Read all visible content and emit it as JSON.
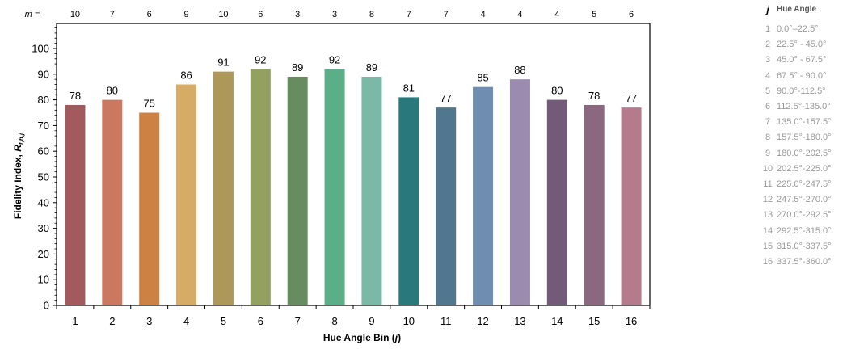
{
  "chart_data": {
    "type": "bar",
    "categories": [
      "1",
      "2",
      "3",
      "4",
      "5",
      "6",
      "7",
      "8",
      "9",
      "10",
      "11",
      "12",
      "13",
      "14",
      "15",
      "16"
    ],
    "values": [
      78,
      80,
      75,
      86,
      91,
      92,
      89,
      92,
      89,
      81,
      77,
      85,
      88,
      80,
      78,
      77
    ],
    "value_labels": [
      "78",
      "80",
      "75",
      "86",
      "91",
      "92",
      "89",
      "92",
      "89",
      "81",
      "77",
      "85",
      "88",
      "80",
      "78",
      "77"
    ],
    "m_label": "m =",
    "m_values": [
      "10",
      "7",
      "6",
      "9",
      "10",
      "6",
      "3",
      "3",
      "8",
      "7",
      "7",
      "4",
      "4",
      "4",
      "5",
      "6"
    ],
    "xlabel_prefix": "Hue Angle Bin (",
    "xlabel_var": "j",
    "xlabel_suffix": ")",
    "ylabel_prefix": "Fidelity Index, ",
    "ylabel_var": "R",
    "ylabel_sub": "f,h,j",
    "ylim": [
      0,
      100
    ],
    "y_ticks": [
      "0",
      "10",
      "20",
      "30",
      "40",
      "50",
      "60",
      "70",
      "80",
      "90",
      "100"
    ],
    "grid": false,
    "colors": [
      "#A35A5E",
      "#CB7860",
      "#CB8243",
      "#D6AB65",
      "#AD9859",
      "#93A160",
      "#668C5F",
      "#5AAE88",
      "#7BB9A6",
      "#29787B",
      "#50778E",
      "#6F8CB1",
      "#9A8BAF",
      "#735A79",
      "#8C6780",
      "#B47B8C"
    ]
  },
  "hue_table": {
    "j_header": "j",
    "hue_header": "Hue Angle",
    "rows": [
      {
        "j": "1",
        "range": "0.0°–22.5°"
      },
      {
        "j": "2",
        "range": "22.5° - 45.0°"
      },
      {
        "j": "3",
        "range": "45.0° - 67.5°"
      },
      {
        "j": "4",
        "range": "67.5° - 90.0°"
      },
      {
        "j": "5",
        "range": "90.0°-112.5°"
      },
      {
        "j": "6",
        "range": "112.5°-135.0°"
      },
      {
        "j": "7",
        "range": "135.0°-157.5°"
      },
      {
        "j": "8",
        "range": "157.5°-180.0°"
      },
      {
        "j": "9",
        "range": "180.0°-202.5°"
      },
      {
        "j": "10",
        "range": "202.5°-225.0°"
      },
      {
        "j": "11",
        "range": "225.0°-247.5°"
      },
      {
        "j": "12",
        "range": "247.5°-270.0°"
      },
      {
        "j": "13",
        "range": "270.0°-292.5°"
      },
      {
        "j": "14",
        "range": "292.5°-315.0°"
      },
      {
        "j": "15",
        "range": "315.0°-337.5°"
      },
      {
        "j": "16",
        "range": "337.5°-360.0°"
      }
    ]
  }
}
